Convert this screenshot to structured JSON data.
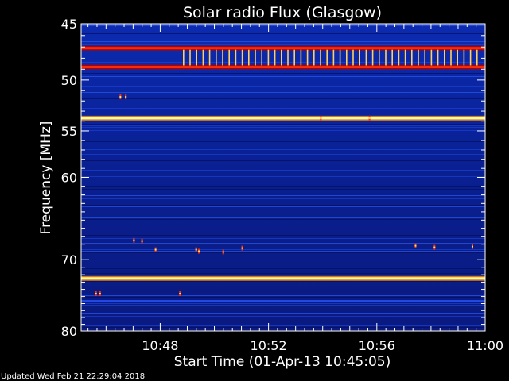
{
  "chart_data": {
    "type": "heatmap",
    "title": "Solar radio Flux (Glasgow)",
    "xlabel": "Start Time (01-Apr-13 10:45:05)",
    "ylabel": "Frequency [MHz]",
    "x_ticks": [
      "10:48",
      "10:52",
      "10:56",
      "11:00"
    ],
    "x_tick_minutes": [
      48,
      52,
      56,
      60
    ],
    "x_range_minutes": [
      45.08,
      60.0
    ],
    "y_ticks": [
      45,
      50,
      55,
      60,
      70,
      80
    ],
    "y_range_mhz": [
      45,
      80
    ],
    "y_scale": "log",
    "emission_lines_mhz": [
      {
        "freq": 47.1,
        "intensity": "high"
      },
      {
        "freq": 48.8,
        "intensity": "high"
      },
      {
        "freq": 53.7,
        "intensity": "very-high"
      },
      {
        "freq": 72.5,
        "intensity": "very-high"
      }
    ],
    "colors": {
      "background": "#0a1d8f",
      "low": "#000040",
      "mid": "#c00000",
      "high": "#ffff80"
    }
  },
  "footer": {
    "updated": "Updated Wed Feb 21 22:29:04 2018"
  }
}
